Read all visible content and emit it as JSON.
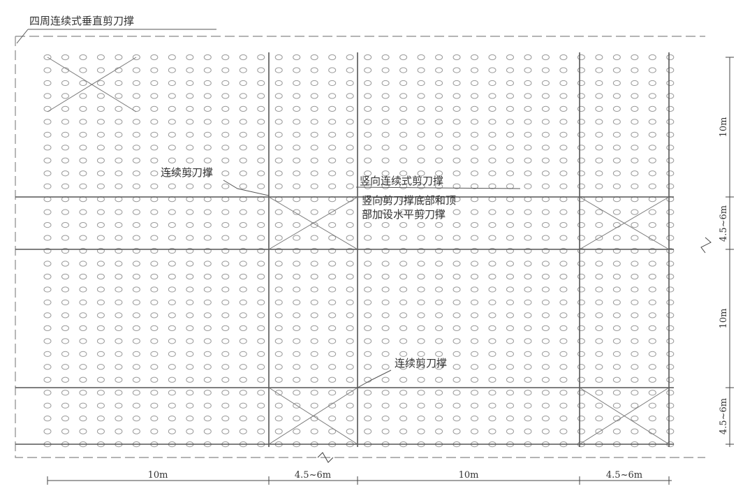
{
  "title": "四周连续式垂直剪刀撑",
  "annotations": {
    "continuous_top": "连续剪刀撑",
    "vertical_continuous": "竖向连续式剪刀撑",
    "vertical_note_1": "竖向剪刀撑底部和顶",
    "vertical_note_2": "部加设水平剪刀撑",
    "continuous_bottom": "连续剪刀撑"
  },
  "dimensions": {
    "horizontal": [
      "10m",
      "4.5~6m",
      "10m",
      "4.5~6m"
    ],
    "vertical": [
      "10m",
      "4.5~6m",
      "10m",
      "4.5~6m"
    ]
  }
}
